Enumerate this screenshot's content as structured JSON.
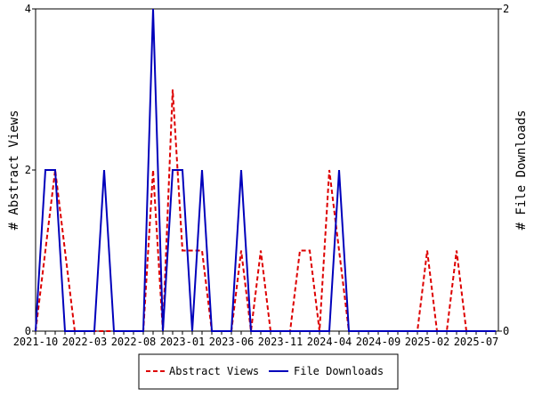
{
  "chart_data": {
    "type": "line",
    "title": "",
    "xlabel": "",
    "ylabel": "# Abstract Views",
    "y2label": "# File Downloads",
    "ylim": [
      0,
      4
    ],
    "y2lim": [
      0,
      2
    ],
    "yticks": [
      "0",
      "2",
      "4"
    ],
    "y2ticks": [
      "0",
      "2"
    ],
    "xtick_labels": [
      "2021-10",
      "2022-03",
      "2022-08",
      "2023-01",
      "2023-06",
      "2023-11",
      "2024-04",
      "2024-09",
      "2025-02",
      "2025-07"
    ],
    "months_count": 48,
    "legend_placement": "bottom-center",
    "series": [
      {
        "name": "Abstract Views",
        "axis": "left",
        "color": "#dd0000",
        "style": "dashed",
        "values": [
          0,
          1,
          2,
          1,
          0,
          0,
          0,
          0,
          0,
          0,
          0,
          0,
          2,
          0,
          3,
          1,
          1,
          1,
          0,
          0,
          0,
          1,
          0,
          1,
          0,
          0,
          0,
          1,
          1,
          0,
          2,
          1,
          0,
          0,
          0,
          0,
          0,
          0,
          0,
          0,
          1,
          0,
          0,
          1,
          0,
          0,
          0,
          0
        ]
      },
      {
        "name": "File Downloads",
        "axis": "right",
        "color": "#0000bb",
        "style": "solid",
        "values": [
          0,
          1,
          1,
          0,
          0,
          0,
          0,
          1,
          0,
          0,
          0,
          0,
          2,
          0,
          1,
          1,
          0,
          1,
          0,
          0,
          0,
          1,
          0,
          0,
          0,
          0,
          0,
          0,
          0,
          0,
          0,
          1,
          0,
          0,
          0,
          0,
          0,
          0,
          0,
          0,
          0,
          0,
          0,
          0,
          0,
          0,
          0,
          0
        ]
      }
    ]
  }
}
